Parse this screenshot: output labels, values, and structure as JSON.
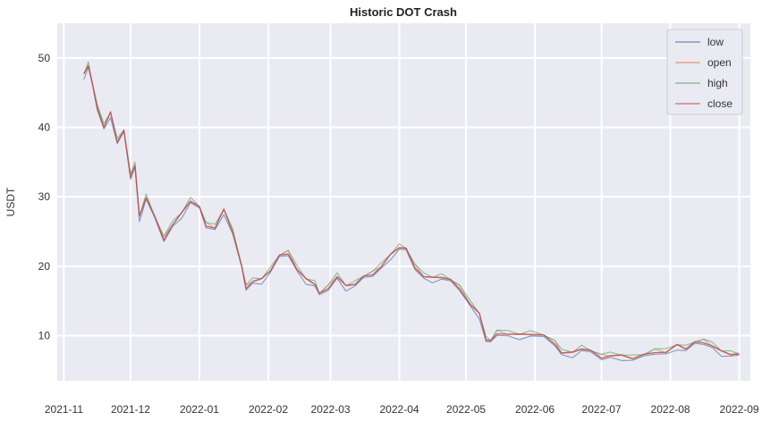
{
  "chart_data": {
    "type": "line",
    "title": "Historic DOT Crash",
    "xlabel": "",
    "ylabel": "USDT",
    "x_ticks": [
      "2021-11",
      "2021-12",
      "2022-01",
      "2022-02",
      "2022-03",
      "2022-04",
      "2022-05",
      "2022-06",
      "2022-07",
      "2022-08",
      "2022-09"
    ],
    "y_ticks": [
      10,
      20,
      30,
      40,
      50
    ],
    "xlim": [
      "2021-10-29",
      "2022-09-06"
    ],
    "ylim": [
      3.5,
      55
    ],
    "grid": true,
    "legend_position": "top-right",
    "background": "#eaeaf2",
    "x": [
      "2021-11-10",
      "2021-11-12",
      "2021-11-14",
      "2021-11-16",
      "2021-11-19",
      "2021-11-22",
      "2021-11-25",
      "2021-11-28",
      "2021-12-01",
      "2021-12-03",
      "2021-12-05",
      "2021-12-08",
      "2021-12-12",
      "2021-12-16",
      "2021-12-20",
      "2021-12-24",
      "2021-12-28",
      "2022-01-01",
      "2022-01-04",
      "2022-01-08",
      "2022-01-12",
      "2022-01-16",
      "2022-01-20",
      "2022-01-22",
      "2022-01-25",
      "2022-01-29",
      "2022-02-02",
      "2022-02-06",
      "2022-02-10",
      "2022-02-14",
      "2022-02-18",
      "2022-02-22",
      "2022-02-24",
      "2022-02-28",
      "2022-03-04",
      "2022-03-08",
      "2022-03-12",
      "2022-03-16",
      "2022-03-20",
      "2022-03-24",
      "2022-03-28",
      "2022-04-01",
      "2022-04-04",
      "2022-04-08",
      "2022-04-12",
      "2022-04-16",
      "2022-04-20",
      "2022-04-24",
      "2022-04-28",
      "2022-05-03",
      "2022-05-07",
      "2022-05-10",
      "2022-05-12",
      "2022-05-15",
      "2022-05-20",
      "2022-05-25",
      "2022-05-30",
      "2022-06-05",
      "2022-06-10",
      "2022-06-13",
      "2022-06-18",
      "2022-06-22",
      "2022-06-26",
      "2022-07-01",
      "2022-07-05",
      "2022-07-10",
      "2022-07-15",
      "2022-07-20",
      "2022-07-25",
      "2022-07-30",
      "2022-08-04",
      "2022-08-08",
      "2022-08-12",
      "2022-08-16",
      "2022-08-20",
      "2022-08-24",
      "2022-08-28",
      "2022-09-01"
    ],
    "close": [
      47.5,
      49.0,
      46.0,
      43.0,
      40.0,
      42.0,
      38.0,
      39.5,
      33.0,
      34.5,
      27.0,
      30.0,
      27.0,
      24.0,
      26.0,
      27.5,
      29.5,
      28.5,
      26.0,
      25.5,
      28.0,
      25.0,
      20.0,
      17.0,
      17.8,
      18.0,
      19.5,
      21.5,
      22.0,
      19.5,
      18.0,
      17.5,
      16.0,
      17.0,
      18.5,
      17.0,
      17.5,
      18.5,
      19.0,
      20.0,
      21.5,
      22.8,
      22.5,
      20.0,
      18.5,
      18.2,
      18.5,
      18.0,
      17.0,
      14.5,
      13.0,
      9.5,
      9.2,
      10.5,
      10.2,
      10.0,
      10.3,
      10.0,
      9.0,
      7.5,
      7.4,
      8.2,
      7.8,
      7.0,
      7.1,
      7.0,
      6.8,
      7.2,
      7.8,
      7.6,
      8.5,
      8.2,
      9.0,
      9.2,
      8.5,
      7.6,
      7.4,
      7.3
    ],
    "series": [
      {
        "name": "low",
        "color": "#4c72b0"
      },
      {
        "name": "open",
        "color": "#dd8452"
      },
      {
        "name": "high",
        "color": "#55a868"
      },
      {
        "name": "close",
        "color": "#c44e52"
      }
    ],
    "legend_labels": [
      "low",
      "open",
      "high",
      "close"
    ]
  }
}
